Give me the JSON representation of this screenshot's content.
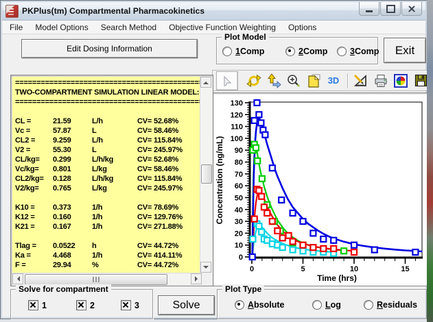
{
  "window": {
    "title": "PKPlus(tm) Compartmental Pharmacokinetics"
  },
  "menu": {
    "items": [
      "File",
      "Model Options",
      "Search Method",
      "Objective Function Weighting",
      "Options"
    ]
  },
  "buttons": {
    "edit_dosing": "Edit Dosing Information",
    "solve": "Solve",
    "exit": "Exit"
  },
  "plot_model": {
    "label": "Plot Model",
    "options": [
      {
        "accel": "1",
        "rest": " Comp",
        "selected": false
      },
      {
        "accel": "2",
        "rest": " Comp",
        "selected": true
      },
      {
        "accel": "3",
        "rest": " Comp",
        "selected": false
      }
    ]
  },
  "plot_type": {
    "label": "Plot Type",
    "options": [
      {
        "accel": "A",
        "rest": "bsolute",
        "selected": true
      },
      {
        "accel": "L",
        "rest": "og",
        "selected": false
      },
      {
        "accel": "R",
        "rest": "esiduals",
        "selected": false
      }
    ]
  },
  "solve_group": {
    "label": "Solve for compartment",
    "boxes": [
      {
        "label": "1",
        "checked": true
      },
      {
        "label": "2",
        "checked": true
      },
      {
        "label": "3",
        "checked": true
      }
    ]
  },
  "toolbar": {
    "threed_label": "3D",
    "tools": [
      "select-arrow",
      "refresh",
      "pan-axes",
      "zoom-in",
      "page-rotate",
      "3d-view",
      "chart-tools",
      "print",
      "palette",
      "save"
    ]
  },
  "results": {
    "rows": [
      {
        "line": "=================================================="
      },
      {
        "line": "TWO-COMPARTMENT SIMULATION LINEAR MODEL:"
      },
      {
        "line": "=================================================="
      },
      {
        "line": ""
      },
      {
        "cells": [
          "CL =",
          "21.59",
          "L/h",
          "CV= 52.68%"
        ]
      },
      {
        "cells": [
          "Vc =",
          "57.87",
          "L",
          "CV= 58.46%"
        ]
      },
      {
        "cells": [
          "CL2 =",
          "9.259",
          "L/h",
          "CV= 115.84%"
        ]
      },
      {
        "cells": [
          "V2 =",
          "55.30",
          "L",
          "CV= 245.97%"
        ]
      },
      {
        "cells": [
          "CL/kg=",
          "0.299",
          "L/h/kg",
          "CV= 52.68%"
        ]
      },
      {
        "cells": [
          "Vc/kg=",
          "0.801",
          "L/kg",
          "CV= 58.46%"
        ]
      },
      {
        "cells": [
          "CL2/kg=",
          "0.128",
          "L/h/kg",
          "CV= 115.84%"
        ]
      },
      {
        "cells": [
          "V2/kg=",
          "0.765",
          "L/kg",
          "CV= 245.97%"
        ]
      },
      {
        "line": ""
      },
      {
        "cells": [
          "K10 =",
          "0.373",
          "1/h",
          "CV= 78.69%"
        ]
      },
      {
        "cells": [
          "K12 =",
          "0.160",
          "1/h",
          "CV= 129.76%"
        ]
      },
      {
        "cells": [
          "K21 =",
          "0.167",
          "1/h",
          "CV= 271.88%"
        ]
      },
      {
        "line": ""
      },
      {
        "cells": [
          "Tlag =",
          "0.0522",
          "h",
          "CV= 44.72%"
        ]
      },
      {
        "cells": [
          "Ka =",
          "4.468",
          "1/h",
          "CV= 414.11%"
        ]
      },
      {
        "cells": [
          "F =",
          "29.94",
          "%",
          "CV= 44.72%"
        ]
      }
    ]
  },
  "chart_data": {
    "type": "scatter",
    "title": "",
    "xlabel": "Time (hrs)",
    "ylabel": "Concentration (ng/mL)",
    "xlim": [
      0,
      16.6
    ],
    "ylim": [
      0,
      130
    ],
    "x_major_ticks": [
      0,
      5,
      10,
      15
    ],
    "x_minor_step": 1,
    "y_major_step": 10,
    "y_minor_step": 2,
    "grid": false,
    "legend": "none",
    "series": [
      {
        "name": "compartment-fit-green",
        "color": "#00cc00",
        "line_width": 2.2,
        "curve": [
          [
            0.05,
            0
          ],
          [
            0.1,
            42
          ],
          [
            0.15,
            67
          ],
          [
            0.22,
            83
          ],
          [
            0.3,
            92
          ],
          [
            0.4,
            94
          ],
          [
            0.5,
            89
          ],
          [
            0.65,
            81
          ],
          [
            0.8,
            74
          ],
          [
            1,
            66
          ],
          [
            1.25,
            58
          ],
          [
            1.5,
            51
          ],
          [
            1.75,
            45
          ],
          [
            2,
            40
          ],
          [
            2.5,
            31
          ],
          [
            3,
            25
          ],
          [
            3.5,
            20
          ],
          [
            4,
            16.5
          ],
          [
            4.5,
            13.8
          ],
          [
            5,
            11.7
          ],
          [
            5.5,
            10.2
          ],
          [
            6,
            9
          ],
          [
            7,
            7.3
          ],
          [
            8,
            6.2
          ],
          [
            9,
            5.4
          ]
        ],
        "points": [
          [
            0.1,
            90
          ],
          [
            0.25,
            95
          ],
          [
            0.4,
            92
          ],
          [
            0.55,
            81
          ],
          [
            1,
            66
          ],
          [
            1.5,
            44
          ],
          [
            2.2,
            30
          ],
          [
            2.8,
            22
          ],
          [
            4,
            12
          ],
          [
            5,
            10
          ],
          [
            6,
            8
          ],
          [
            7,
            6
          ],
          [
            9,
            5
          ]
        ]
      },
      {
        "name": "compartment-fit-cyan",
        "color": "#00d4e4",
        "line_width": 2.2,
        "curve": [
          [
            0.05,
            0
          ],
          [
            0.12,
            7
          ],
          [
            0.2,
            13
          ],
          [
            0.3,
            18
          ],
          [
            0.4,
            22
          ],
          [
            0.55,
            25
          ],
          [
            0.7,
            26.5
          ],
          [
            0.85,
            26
          ],
          [
            1,
            25
          ],
          [
            1.25,
            22.5
          ],
          [
            1.5,
            20
          ],
          [
            2,
            16
          ],
          [
            2.5,
            13.5
          ],
          [
            3,
            11.3
          ],
          [
            3.5,
            9.7
          ],
          [
            4,
            8.4
          ],
          [
            4.5,
            7.4
          ],
          [
            5,
            6.6
          ],
          [
            6,
            5.4
          ],
          [
            7,
            4.6
          ],
          [
            8,
            4
          ]
        ],
        "points": [
          [
            0.1,
            15
          ],
          [
            0.5,
            28
          ],
          [
            0.7,
            26
          ],
          [
            0.95,
            21
          ],
          [
            1.2,
            15
          ],
          [
            1.5,
            14
          ],
          [
            2,
            11
          ],
          [
            2.5,
            10
          ],
          [
            3,
            8
          ],
          [
            4,
            6
          ],
          [
            5,
            5
          ],
          [
            6,
            4
          ],
          [
            7,
            4
          ],
          [
            8,
            3
          ]
        ]
      },
      {
        "name": "compartment-fit-red",
        "color": "#ee0000",
        "line_width": 2.2,
        "curve": [
          [
            0.05,
            0
          ],
          [
            0.12,
            14
          ],
          [
            0.2,
            26
          ],
          [
            0.3,
            38
          ],
          [
            0.4,
            46
          ],
          [
            0.5,
            51
          ],
          [
            0.65,
            55
          ],
          [
            0.8,
            56
          ],
          [
            1,
            53
          ],
          [
            1.25,
            48
          ],
          [
            1.5,
            43
          ],
          [
            1.75,
            38
          ],
          [
            2,
            34
          ],
          [
            2.5,
            27
          ],
          [
            3,
            22
          ],
          [
            3.5,
            18
          ],
          [
            4,
            15.3
          ],
          [
            4.5,
            13
          ],
          [
            5,
            11.3
          ],
          [
            6,
            8.9
          ],
          [
            7,
            7.4
          ],
          [
            8,
            6.4
          ],
          [
            9,
            5.6
          ],
          [
            10,
            5
          ]
        ],
        "points": [
          [
            0.25,
            32
          ],
          [
            0.5,
            57
          ],
          [
            0.7,
            56
          ],
          [
            0.95,
            51
          ],
          [
            1.2,
            42
          ],
          [
            1.5,
            37
          ],
          [
            2,
            30
          ],
          [
            2.5,
            22
          ],
          [
            3,
            16
          ],
          [
            3.6,
            18
          ],
          [
            4,
            13
          ],
          [
            5,
            10
          ],
          [
            6,
            8
          ],
          [
            7,
            7
          ],
          [
            8,
            7
          ],
          [
            10,
            4
          ]
        ]
      },
      {
        "name": "compartment-fit-blue",
        "color": "#0000e0",
        "line_width": 2.6,
        "curve": [
          [
            0.05,
            0
          ],
          [
            0.12,
            40
          ],
          [
            0.2,
            72
          ],
          [
            0.3,
            95
          ],
          [
            0.4,
            106
          ],
          [
            0.5,
            113
          ],
          [
            0.65,
            117
          ],
          [
            0.8,
            116
          ],
          [
            1,
            111
          ],
          [
            1.25,
            103
          ],
          [
            1.5,
            95
          ],
          [
            1.75,
            88
          ],
          [
            2,
            81
          ],
          [
            2.25,
            74
          ],
          [
            2.5,
            68
          ],
          [
            2.75,
            63
          ],
          [
            3,
            58
          ],
          [
            3.5,
            49
          ],
          [
            4,
            42
          ],
          [
            4.5,
            37
          ],
          [
            5,
            32
          ],
          [
            5.5,
            28
          ],
          [
            6,
            25
          ],
          [
            6.5,
            22
          ],
          [
            7,
            19.5
          ],
          [
            7.5,
            17.4
          ],
          [
            8,
            15.6
          ],
          [
            9,
            12.8
          ],
          [
            10,
            10.7
          ],
          [
            11,
            9.2
          ],
          [
            12,
            8
          ],
          [
            13,
            7
          ],
          [
            14,
            6.2
          ],
          [
            15,
            5.5
          ],
          [
            16,
            5
          ],
          [
            16.6,
            4.6
          ]
        ],
        "points": [
          [
            0.05,
            0
          ],
          [
            0.25,
            115
          ],
          [
            0.5,
            130
          ],
          [
            0.7,
            120
          ],
          [
            0.9,
            113
          ],
          [
            1.1,
            107
          ],
          [
            1.3,
            103
          ],
          [
            2,
            75
          ],
          [
            2.9,
            48
          ],
          [
            4,
            37
          ],
          [
            5,
            30
          ],
          [
            6,
            20
          ],
          [
            7,
            15
          ],
          [
            8,
            14
          ],
          [
            10,
            10
          ],
          [
            12,
            6
          ],
          [
            16,
            4
          ]
        ]
      }
    ]
  }
}
